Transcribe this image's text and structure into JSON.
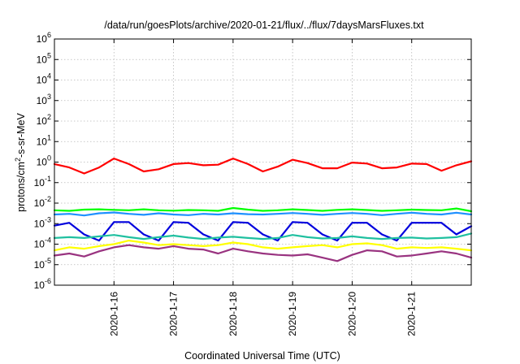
{
  "chart_data": {
    "type": "line",
    "title": "/data/run/goesPlots/archive/2020-01-21/flux/../flux/7daysMarsFluxes.txt",
    "xlabel": "Coordinated Universal Time (UTC)",
    "ylabel_main": "protons/cm",
    "ylabel_sup": "2",
    "ylabel_rest": "-s-sr-MeV",
    "yscale": "log",
    "ylim": [
      1e-06,
      1000000.0
    ],
    "y_tick_bases": [
      "10",
      "10",
      "10",
      "10",
      "10",
      "10",
      "10",
      "10",
      "10",
      "10",
      "10",
      "10",
      "10"
    ],
    "y_tick_exps": [
      "-6",
      "-5",
      "-4",
      "-3",
      "-2",
      "-1",
      "0",
      "1",
      "2",
      "3",
      "4",
      "5",
      "6"
    ],
    "xlim": [
      15.0,
      22.0
    ],
    "x_ticks": [
      16,
      17,
      18,
      19,
      20,
      21
    ],
    "x_tick_labels": [
      "2020-1-16",
      "2020-1-17",
      "2020-1-18",
      "2020-1-19",
      "2020-1-20",
      "2020-1-21"
    ],
    "grid": true,
    "series": [
      {
        "color": "#ff0000",
        "x": [
          15.0,
          15.25,
          15.5,
          15.75,
          16.0,
          16.25,
          16.5,
          16.75,
          17.0,
          17.25,
          17.5,
          17.75,
          18.0,
          18.25,
          18.5,
          18.75,
          19.0,
          19.25,
          19.5,
          19.75,
          20.0,
          20.25,
          20.5,
          20.75,
          21.0,
          21.25,
          21.5,
          21.75,
          22.0
        ],
        "y": [
          0.8,
          0.55,
          0.28,
          0.55,
          1.5,
          0.8,
          0.35,
          0.45,
          0.8,
          0.9,
          0.7,
          0.75,
          1.5,
          0.8,
          0.35,
          0.6,
          1.3,
          0.9,
          0.5,
          0.5,
          0.95,
          0.85,
          0.5,
          0.55,
          0.85,
          0.8,
          0.38,
          0.7,
          1.1
        ]
      },
      {
        "color": "#00ff00",
        "x": [
          15.0,
          15.25,
          15.5,
          15.75,
          16.0,
          16.25,
          16.5,
          16.75,
          17.0,
          17.25,
          17.5,
          17.75,
          18.0,
          18.25,
          18.5,
          18.75,
          19.0,
          19.25,
          19.5,
          19.75,
          20.0,
          20.25,
          20.5,
          20.75,
          21.0,
          21.25,
          21.5,
          21.75,
          22.0
        ],
        "y": [
          0.0045,
          0.0042,
          0.0048,
          0.005,
          0.0047,
          0.0045,
          0.005,
          0.0045,
          0.0043,
          0.0046,
          0.0045,
          0.0042,
          0.0058,
          0.0048,
          0.0042,
          0.0045,
          0.005,
          0.0046,
          0.0042,
          0.0047,
          0.005,
          0.0046,
          0.0042,
          0.0045,
          0.0048,
          0.0046,
          0.0045,
          0.0055,
          0.004
        ]
      },
      {
        "color": "#1e90ff",
        "x": [
          15.0,
          15.25,
          15.5,
          15.75,
          16.0,
          16.25,
          16.5,
          16.75,
          17.0,
          17.25,
          17.5,
          17.75,
          18.0,
          18.25,
          18.5,
          18.75,
          19.0,
          19.25,
          19.5,
          19.75,
          20.0,
          20.25,
          20.5,
          20.75,
          21.0,
          21.25,
          21.5,
          21.75,
          22.0
        ],
        "y": [
          0.0028,
          0.003,
          0.0025,
          0.0032,
          0.0035,
          0.003,
          0.0027,
          0.0032,
          0.0028,
          0.0026,
          0.003,
          0.0028,
          0.0032,
          0.0029,
          0.0028,
          0.003,
          0.0033,
          0.003,
          0.0027,
          0.003,
          0.0033,
          0.003,
          0.0026,
          0.003,
          0.0034,
          0.003,
          0.0028,
          0.0034,
          0.0028
        ]
      },
      {
        "color": "#0000dd",
        "x": [
          15.0,
          15.25,
          15.5,
          15.75,
          16.0,
          16.25,
          16.5,
          16.75,
          17.0,
          17.25,
          17.5,
          17.75,
          18.0,
          18.25,
          18.5,
          18.75,
          19.0,
          19.25,
          19.5,
          19.75,
          20.0,
          20.25,
          20.5,
          20.75,
          21.0,
          21.25,
          21.5,
          21.75,
          22.0
        ],
        "y": [
          0.0008,
          0.0011,
          0.0003,
          0.00015,
          0.0012,
          0.0012,
          0.0003,
          0.00015,
          0.0012,
          0.0011,
          0.0003,
          0.00015,
          0.0012,
          0.0011,
          0.0003,
          0.00015,
          0.0012,
          0.0011,
          0.0003,
          0.00015,
          0.0011,
          0.0011,
          0.0003,
          0.00015,
          0.0011,
          0.0011,
          0.0011,
          0.0003,
          0.00075
        ]
      },
      {
        "color": "#20c0a0",
        "x": [
          15.0,
          15.25,
          15.5,
          15.75,
          16.0,
          16.25,
          16.5,
          16.75,
          17.0,
          17.25,
          17.5,
          17.75,
          18.0,
          18.25,
          18.5,
          18.75,
          19.0,
          19.25,
          19.5,
          19.75,
          20.0,
          20.25,
          20.5,
          20.75,
          21.0,
          21.25,
          21.5,
          21.75,
          22.0
        ],
        "y": [
          0.0002,
          0.00022,
          0.0002,
          0.00024,
          0.00028,
          0.00022,
          0.00018,
          0.00022,
          0.00026,
          0.00021,
          0.00018,
          0.00021,
          0.00023,
          0.0002,
          0.00018,
          0.0002,
          0.00028,
          0.00022,
          0.00019,
          0.0002,
          0.00024,
          0.0002,
          0.00018,
          0.0002,
          0.00021,
          0.00019,
          0.0002,
          0.00022,
          0.00033
        ]
      },
      {
        "color": "#ffff00",
        "x": [
          15.0,
          15.25,
          15.5,
          15.75,
          16.0,
          16.25,
          16.5,
          16.75,
          17.0,
          17.25,
          17.5,
          17.75,
          18.0,
          18.25,
          18.5,
          18.75,
          19.0,
          19.25,
          19.5,
          19.75,
          20.0,
          20.25,
          20.5,
          20.75,
          21.0,
          21.25,
          21.5,
          21.75,
          22.0
        ],
        "y": [
          5e-05,
          7e-05,
          6e-05,
          8e-05,
          0.0001,
          0.00015,
          0.00012,
          9e-05,
          0.0001,
          9e-05,
          8e-05,
          9e-05,
          0.00012,
          0.0001,
          7e-05,
          6e-05,
          7e-05,
          8e-05,
          9e-05,
          7e-05,
          0.0001,
          0.00011,
          9e-05,
          6e-05,
          7e-05,
          6.5e-05,
          7e-05,
          6e-05,
          5e-05
        ]
      },
      {
        "color": "#993380",
        "x": [
          15.0,
          15.25,
          15.5,
          15.75,
          16.0,
          16.25,
          16.5,
          16.75,
          17.0,
          17.25,
          17.5,
          17.75,
          18.0,
          18.25,
          18.5,
          18.75,
          19.0,
          19.25,
          19.5,
          19.75,
          20.0,
          20.25,
          20.5,
          20.75,
          21.0,
          21.25,
          21.5,
          21.75,
          22.0
        ],
        "y": [
          2.8e-05,
          3.5e-05,
          2.5e-05,
          4.5e-05,
          7e-05,
          9e-05,
          7e-05,
          6e-05,
          8e-05,
          6e-05,
          5.5e-05,
          3.5e-05,
          6e-05,
          4.5e-05,
          3.5e-05,
          3e-05,
          2.8e-05,
          3.2e-05,
          2.2e-05,
          1.5e-05,
          3e-05,
          5e-05,
          4.5e-05,
          2.5e-05,
          2.8e-05,
          3.5e-05,
          4.5e-05,
          3.5e-05,
          2.2e-05
        ]
      }
    ]
  }
}
